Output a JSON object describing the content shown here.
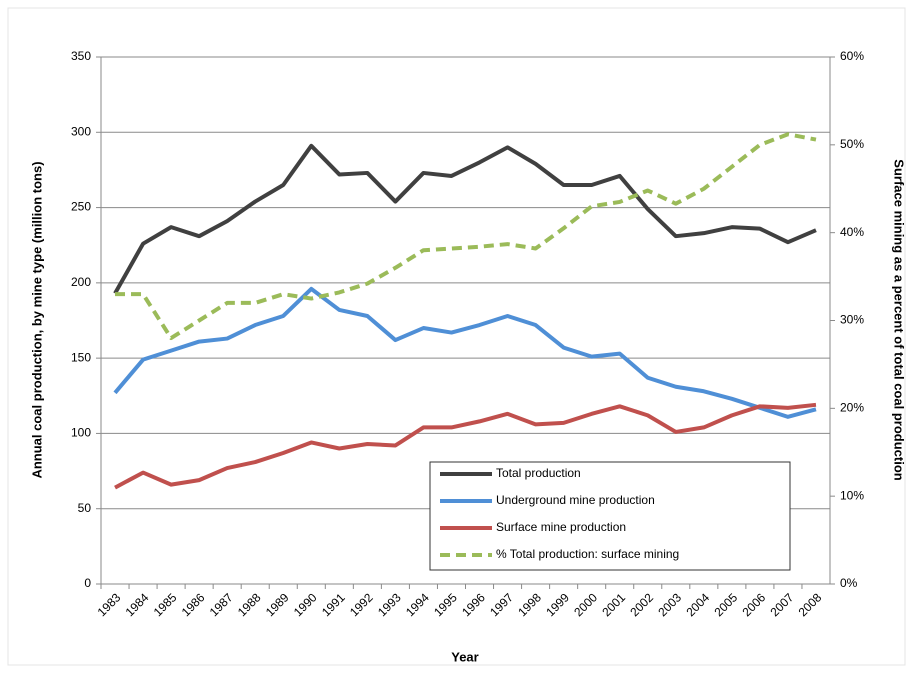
{
  "chart_data": {
    "type": "line",
    "x_label": "Year",
    "y_label": "Annual coal production, by mine type (million tons)",
    "y2_label": "Surface mining as a percent of total coal production",
    "categories": [
      "1983",
      "1984",
      "1985",
      "1986",
      "1987",
      "1988",
      "1989",
      "1990",
      "1991",
      "1992",
      "1993",
      "1994",
      "1995",
      "1996",
      "1997",
      "1998",
      "1999",
      "2000",
      "2001",
      "2002",
      "2003",
      "2004",
      "2005",
      "2006",
      "2007",
      "2008"
    ],
    "series": [
      {
        "name": "Total production",
        "color": "#404040",
        "values": [
          193,
          226,
          237,
          231,
          241,
          254,
          265,
          291,
          272,
          273,
          254,
          273,
          271,
          280,
          290,
          279,
          265,
          265,
          271,
          249,
          231,
          233,
          237,
          236,
          227,
          235
        ]
      },
      {
        "name": "Underground mine production",
        "color": "#4f8fd6",
        "values": [
          127,
          149,
          155,
          161,
          163,
          172,
          178,
          196,
          182,
          178,
          162,
          170,
          167,
          172,
          178,
          172,
          157,
          151,
          153,
          137,
          131,
          128,
          123,
          117,
          111,
          116
        ]
      },
      {
        "name": "Surface mine production",
        "color": "#c0504d",
        "values": [
          64,
          74,
          66,
          69,
          77,
          81,
          87,
          94,
          90,
          93,
          92,
          104,
          104,
          108,
          113,
          106,
          107,
          113,
          118,
          112,
          101,
          104,
          112,
          118,
          117,
          119
        ]
      },
      {
        "name": "% Total production: surface mining",
        "color": "#9bbb59",
        "axis": "y2",
        "dashed": true,
        "values": [
          33,
          33,
          28,
          30,
          32,
          32,
          33,
          32.5,
          33.2,
          34.2,
          36,
          38,
          38.2,
          38.4,
          38.7,
          38.2,
          40.5,
          43,
          43.5,
          44.8,
          43.3,
          45,
          47.5,
          50,
          51.2,
          50.6
        ]
      }
    ],
    "ylim": [
      0,
      350
    ],
    "yticks": [
      0,
      50,
      100,
      150,
      200,
      250,
      300,
      350
    ],
    "y2lim": [
      0,
      60
    ],
    "y2ticks": [
      {
        "value": 0,
        "label": "0%"
      },
      {
        "value": 10,
        "label": "10%"
      },
      {
        "value": 20,
        "label": "20%"
      },
      {
        "value": 30,
        "label": "30%"
      },
      {
        "value": 40,
        "label": "40%"
      },
      {
        "value": 50,
        "label": "50%"
      },
      {
        "value": 60,
        "label": "60%"
      }
    ],
    "grid": true,
    "legend": "lower right"
  }
}
